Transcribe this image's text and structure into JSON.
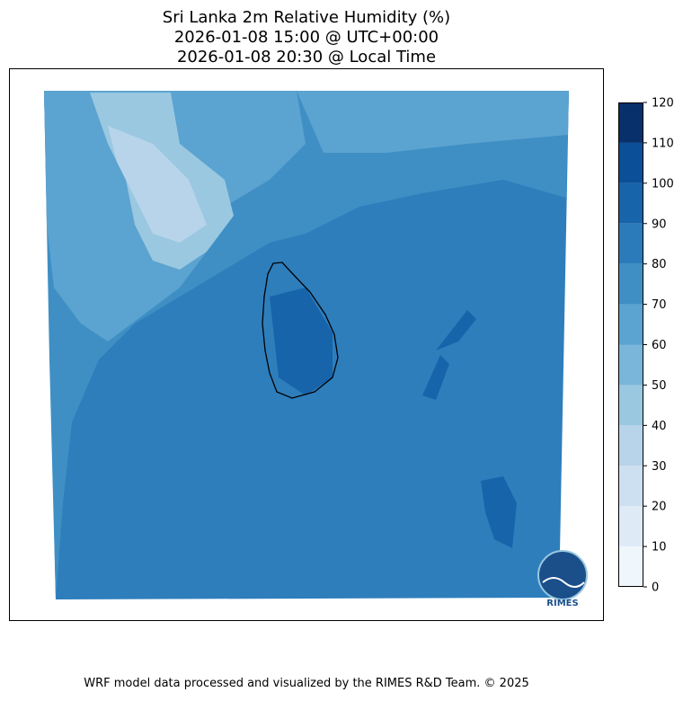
{
  "title": [
    "Sri Lanka 2m Relative Humidity (%)",
    "2026-01-08 15:00 @ UTC+00:00",
    "2026-01-08 20:30 @ Local Time"
  ],
  "colorbar": {
    "ticks": [
      0,
      10,
      20,
      30,
      40,
      50,
      60,
      70,
      80,
      90,
      100,
      110,
      120
    ],
    "colors": [
      "#eff6fc",
      "#deebf7",
      "#cde0f1",
      "#b7d4ea",
      "#9ac8e0",
      "#7ab6d9",
      "#5ba3d0",
      "#3f8fc5",
      "#2b7bba",
      "#1764ab",
      "#0a4f97",
      "#08306b"
    ]
  },
  "logo": "RIMES",
  "footer": "WRF model data processed and visualized by the RIMES R&D Team. © 2025"
}
